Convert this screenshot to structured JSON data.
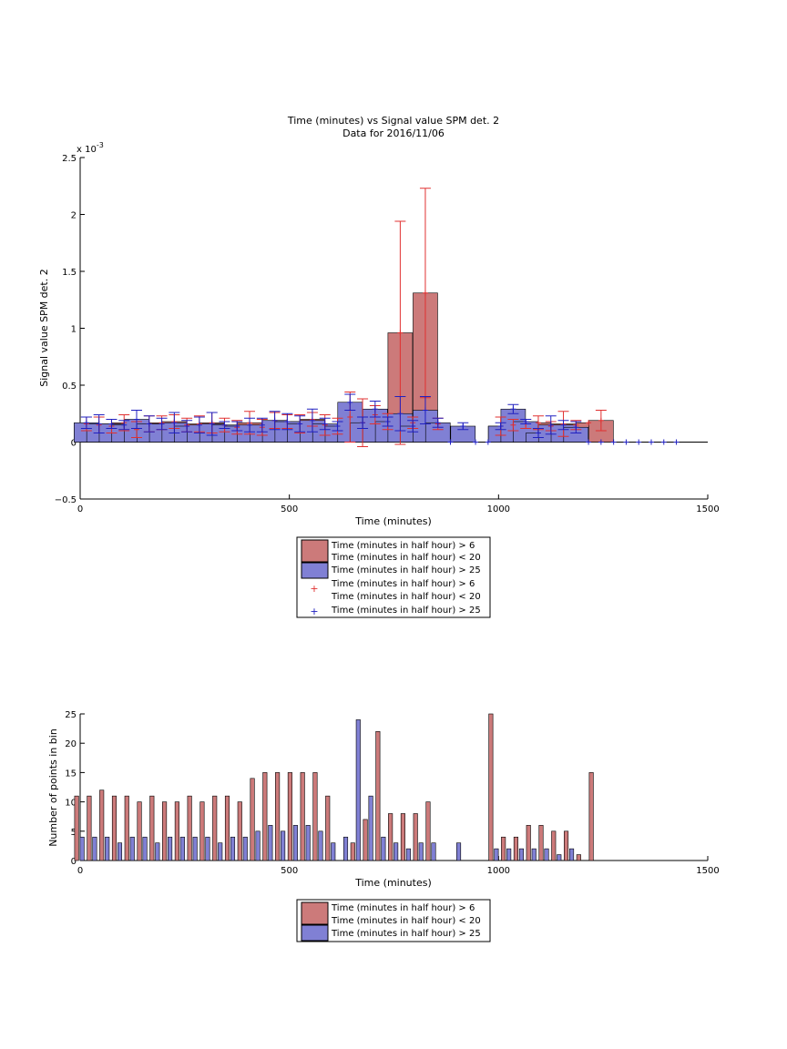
{
  "colors": {
    "red_bar": "#cc7a7a",
    "blue_bar": "#8080d4",
    "red_err": "#e03030",
    "blue_err": "#2020c0",
    "axis": "#000000"
  },
  "chart_data": [
    {
      "type": "bar",
      "title": "Time (minutes) vs Signal value SPM det. 2",
      "subtitle": "Data for 2016/11/06",
      "xlabel": "Time (minutes)",
      "ylabel": "Signal value SPM det. 2",
      "y_exponent": "x 10",
      "y_exponent_power": "-3",
      "xlim": [
        0,
        1500
      ],
      "ylim": [
        -0.5,
        2.5
      ],
      "xticks": [
        "0",
        "500",
        "1000",
        "1500"
      ],
      "yticks": [
        "−0.5",
        "0",
        "0.5",
        "1",
        "1.5",
        "2",
        "2.5"
      ],
      "legend_position": "below",
      "legend": [
        "Time (minutes in half hour) > 6",
        "Time (minutes in half hour) < 20",
        "Time (minutes in half hour) > 25",
        "Time (minutes in half hour) > 6",
        "Time (minutes in half hour) < 20",
        "Time (minutes in half hour) > 25"
      ],
      "x": [
        15,
        45,
        75,
        105,
        135,
        165,
        195,
        225,
        255,
        285,
        315,
        345,
        375,
        405,
        435,
        465,
        495,
        525,
        555,
        585,
        615,
        645,
        675,
        705,
        735,
        765,
        795,
        825,
        855,
        885,
        915,
        945,
        975,
        1005,
        1035,
        1065,
        1095,
        1125,
        1155,
        1185,
        1215,
        1245,
        1275,
        1305,
        1335,
        1365,
        1395,
        1425
      ],
      "series": [
        {
          "name": "Time (minutes in half hour) > 6 / < 20",
          "values": [
            0.16,
            0.15,
            0.14,
            0.17,
            0.11,
            0.16,
            0.17,
            0.18,
            0.15,
            0.16,
            0.17,
            0.15,
            0.13,
            0.17,
            0.13,
            0.19,
            0.18,
            0.16,
            0.2,
            0.15,
            0.14,
            0.22,
            0.17,
            0.24,
            0.18,
            0.96,
            0.17,
            1.31,
            0.16,
            null,
            null,
            null,
            null,
            0.14,
            0.15,
            0.16,
            0.17,
            0.14,
            0.16,
            0.15,
            0.17,
            0.19,
            null,
            null,
            null,
            null,
            null,
            null
          ],
          "err": [
            0.06,
            0.07,
            0.06,
            0.07,
            0.07,
            0.07,
            0.06,
            0.06,
            0.06,
            0.07,
            0.09,
            0.06,
            0.06,
            0.1,
            0.07,
            0.07,
            0.06,
            0.08,
            0.06,
            0.09,
            0.07,
            0.22,
            0.21,
            0.08,
            0.07,
            0.98,
            0.05,
            0.92,
            0.05,
            null,
            null,
            null,
            null,
            0.08,
            0.05,
            0.04,
            0.06,
            0.04,
            0.11,
            0.04,
            null,
            0.09,
            null,
            null,
            null,
            null,
            null,
            null
          ]
        },
        {
          "name": "Time (minutes in half hour) > 25",
          "values": [
            0.17,
            0.16,
            0.16,
            0.15,
            0.2,
            0.16,
            0.16,
            0.17,
            0.14,
            0.15,
            0.16,
            0.15,
            0.14,
            0.15,
            0.15,
            0.19,
            0.18,
            0.16,
            0.19,
            0.16,
            0.14,
            0.35,
            0.17,
            0.29,
            0.18,
            0.25,
            0.14,
            0.28,
            0.17,
            0,
            0.14,
            0,
            0,
            0.14,
            0.29,
            0.18,
            0.08,
            0.15,
            0.15,
            0.13,
            0,
            0,
            0,
            0,
            0,
            0,
            0,
            0
          ],
          "err": [
            0.05,
            0.08,
            0.04,
            0.04,
            0.08,
            0.07,
            0.05,
            0.09,
            0.05,
            0.07,
            0.1,
            0.03,
            0.04,
            0.06,
            0.06,
            0.08,
            0.07,
            0.07,
            0.1,
            0.05,
            0.04,
            0.07,
            0.05,
            0.07,
            0.04,
            0.15,
            0.05,
            0.12,
            0.04,
            0,
            0.03,
            0,
            0,
            0.03,
            0.04,
            0.02,
            0.04,
            0.08,
            0.04,
            0.05,
            0,
            0,
            0,
            0,
            0,
            0,
            0,
            0
          ]
        }
      ]
    },
    {
      "type": "bar",
      "xlabel": "Time (minutes)",
      "ylabel": "Number of points in bin",
      "xlim": [
        0,
        1500
      ],
      "ylim": [
        0,
        25
      ],
      "xticks": [
        "0",
        "500",
        "1000",
        "1500"
      ],
      "yticks": [
        "0",
        "5",
        "10",
        "15",
        "20",
        "25"
      ],
      "legend_position": "below",
      "legend": [
        "Time (minutes in half hour) > 6",
        "Time (minutes in half hour) < 20",
        "Time (minutes in half hour) > 25"
      ],
      "x": [
        15,
        45,
        75,
        105,
        135,
        165,
        195,
        225,
        255,
        285,
        315,
        345,
        375,
        405,
        435,
        465,
        495,
        525,
        555,
        585,
        615,
        645,
        675,
        705,
        735,
        765,
        795,
        825,
        855,
        885,
        915,
        945,
        975,
        1005,
        1035,
        1065,
        1095,
        1125,
        1155,
        1185,
        1215,
        1245
      ],
      "series": [
        {
          "name": "Time (minutes in half hour) > 6 / < 20",
          "values": [
            11,
            11,
            12,
            11,
            11,
            10,
            11,
            10,
            10,
            11,
            10,
            11,
            11,
            10,
            14,
            15,
            15,
            15,
            15,
            15,
            11,
            0,
            3,
            7,
            22,
            8,
            8,
            8,
            10,
            0,
            0,
            0,
            0,
            25,
            4,
            4,
            6,
            6,
            5,
            5,
            1,
            15
          ]
        },
        {
          "name": "Time (minutes in half hour) > 25",
          "values": [
            4,
            4,
            4,
            3,
            4,
            4,
            3,
            4,
            4,
            4,
            4,
            3,
            4,
            4,
            5,
            6,
            5,
            6,
            6,
            5,
            3,
            4,
            24,
            11,
            4,
            3,
            2,
            3,
            3,
            0,
            3,
            0,
            0,
            2,
            2,
            2,
            2,
            2,
            1,
            2,
            0,
            0
          ]
        }
      ]
    }
  ]
}
